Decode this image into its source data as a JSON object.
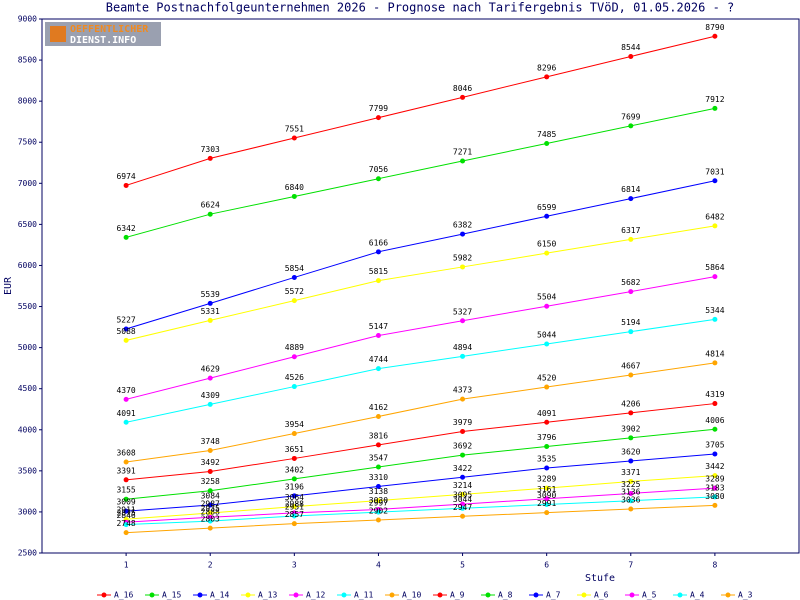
{
  "chart_data": {
    "type": "line",
    "title": "Beamte Postnachfolgeunternehmen 2026 - Prognose nach Tarifergebnis TVöD, 01.05.2026 - ?",
    "logo": [
      "OEFFENTLICHER",
      "DIENST.INFO"
    ],
    "x_label": "Stufe",
    "y_label": "EUR",
    "x": [
      1,
      2,
      3,
      4,
      5,
      6,
      7,
      8
    ],
    "xlim": [
      0,
      9
    ],
    "xticks": [
      1,
      2,
      3,
      4,
      5,
      6,
      7,
      8
    ],
    "ylim": [
      2500,
      9000
    ],
    "yticks": [
      2500,
      3000,
      3500,
      4000,
      4500,
      5000,
      5500,
      6000,
      6500,
      7000,
      7500,
      8000,
      8500,
      9000
    ],
    "series": [
      {
        "name": "A_16",
        "color": "#ff0000",
        "values": [
          6974,
          7303,
          7551,
          7799,
          8046,
          8296,
          8544,
          8790
        ]
      },
      {
        "name": "A_15",
        "color": "#00e000",
        "values": [
          6342,
          6624,
          6840,
          7056,
          7271,
          7485,
          7699,
          7912
        ]
      },
      {
        "name": "A_14",
        "color": "#0000ff",
        "values": [
          5227,
          5539,
          5854,
          6166,
          6382,
          6599,
          6814,
          7031
        ]
      },
      {
        "name": "A_13",
        "color": "#ffff00",
        "values": [
          5088,
          5331,
          5572,
          5815,
          5982,
          6150,
          6317,
          6482
        ]
      },
      {
        "name": "A_12",
        "color": "#ff00ff",
        "values": [
          4370,
          4629,
          4889,
          5147,
          5327,
          5504,
          5682,
          5864
        ]
      },
      {
        "name": "A_11",
        "color": "#00ffff",
        "values": [
          4091,
          4309,
          4526,
          4744,
          4894,
          5044,
          5194,
          5344
        ]
      },
      {
        "name": "A_10",
        "color": "#ffa500",
        "values": [
          3608,
          3748,
          3954,
          4162,
          4373,
          4520,
          4667,
          4814
        ]
      },
      {
        "name": "A_9",
        "color": "#ff0000",
        "values": [
          3391,
          3492,
          3651,
          3816,
          3979,
          4091,
          4206,
          4319
        ]
      },
      {
        "name": "A_8",
        "color": "#00e000",
        "values": [
          3155,
          3258,
          3402,
          3547,
          3692,
          3796,
          3902,
          4006
        ]
      },
      {
        "name": "A_7",
        "color": "#0000ff",
        "values": [
          3009,
          3084,
          3196,
          3310,
          3422,
          3535,
          3620,
          3705
        ]
      },
      {
        "name": "A_6",
        "color": "#ffff00",
        "values": [
          2911,
          2987,
          3064,
          3138,
          3214,
          3289,
          3371,
          3442
        ]
      },
      {
        "name": "A_5",
        "color": "#ff00ff",
        "values": [
          2875,
          2935,
          2988,
          3030,
          3095,
          3161,
          3225,
          3289
        ]
      },
      {
        "name": "A_4",
        "color": "#00ffff",
        "values": [
          2846,
          2888,
          2951,
          2997,
          3044,
          3090,
          3136,
          3183
        ]
      },
      {
        "name": "A_3",
        "color": "#ffa500",
        "values": [
          2748,
          2803,
          2857,
          2902,
          2947,
          2991,
          3036,
          3080
        ]
      }
    ]
  }
}
